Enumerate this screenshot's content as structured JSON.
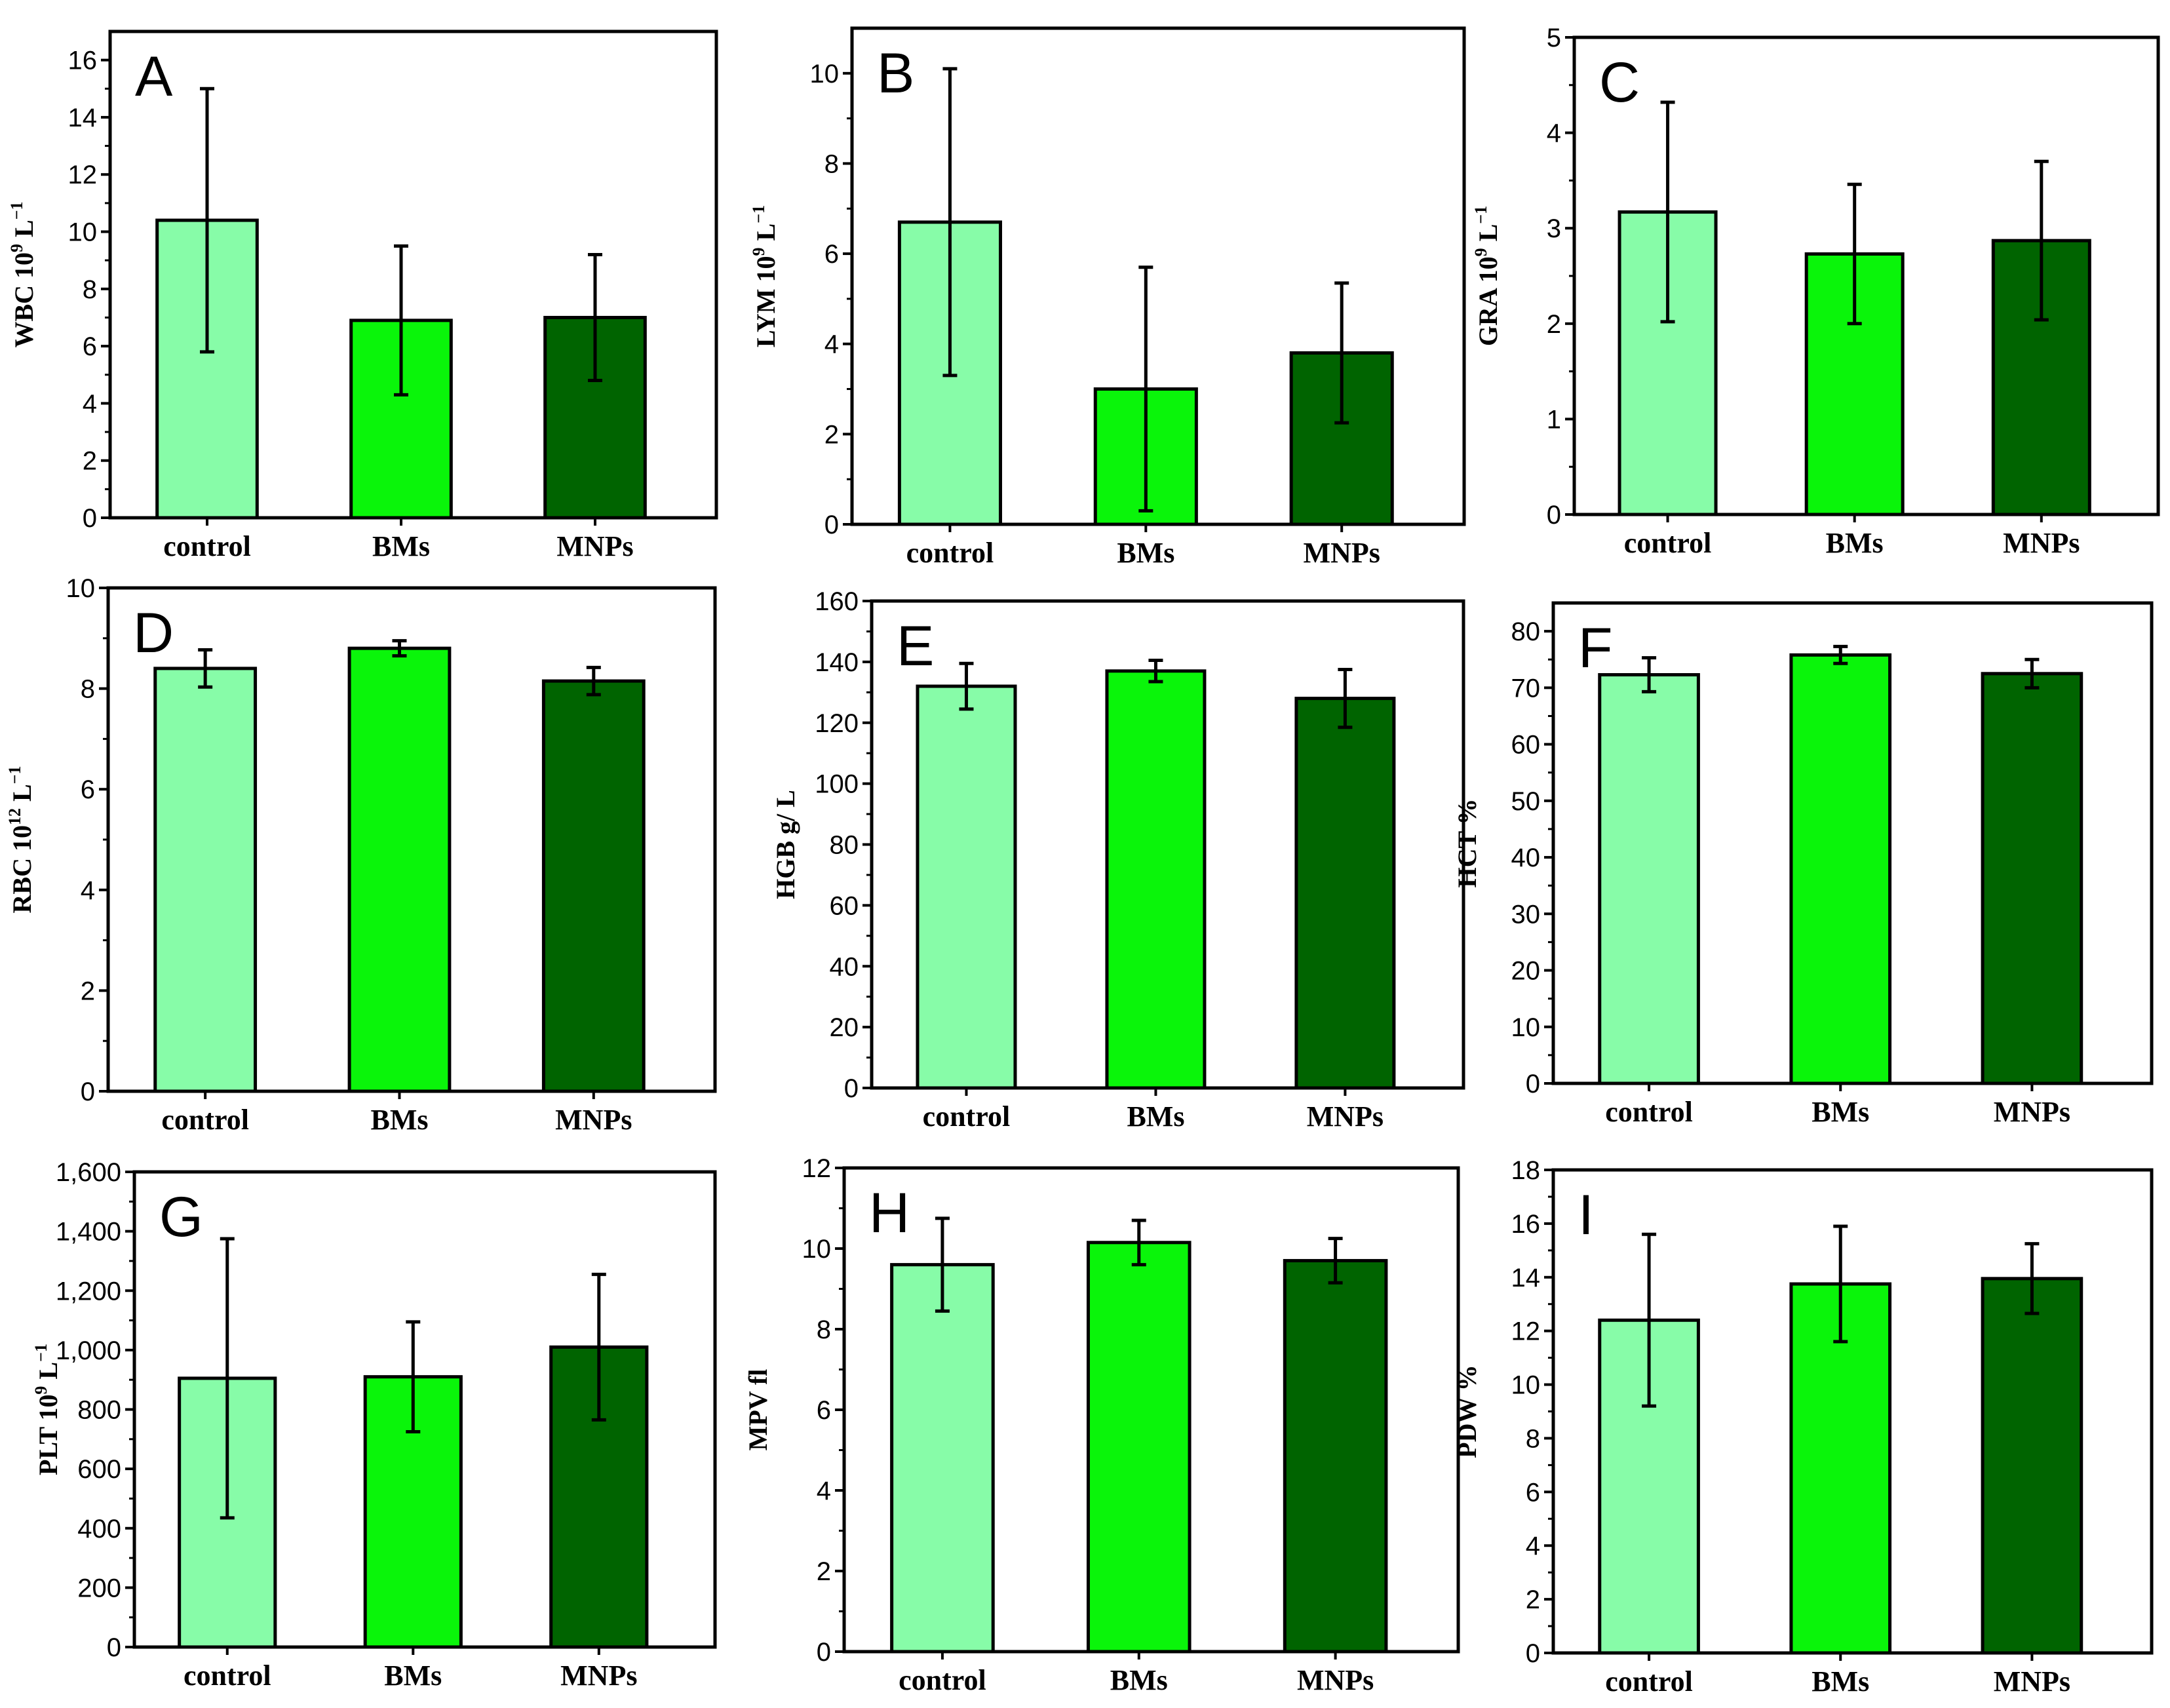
{
  "figure": {
    "colors": [
      "#87FCA8",
      "#0AF50A",
      "#006400"
    ],
    "panel_count": 9
  },
  "chart_data": [
    {
      "type": "bar",
      "panel": "A",
      "title": "",
      "xlabel": "",
      "ylabel": {
        "base": "WBC 10",
        "sup": "9",
        "rest": " L",
        "sup2": "−1"
      },
      "ylim": [
        0,
        17
      ],
      "ticks": [
        0,
        2,
        4,
        6,
        8,
        10,
        12,
        14,
        16
      ],
      "tick_labels": [
        "0",
        "2",
        "4",
        "6",
        "8",
        "10",
        "12",
        "14",
        "16"
      ],
      "categories": [
        "control",
        "BMs",
        "MNPs"
      ],
      "values": [
        10.4,
        6.9,
        7.0
      ],
      "errors": [
        4.6,
        2.6,
        2.2
      ]
    },
    {
      "type": "bar",
      "panel": "B",
      "title": "",
      "xlabel": "",
      "ylabel": {
        "base": "LYM 10",
        "sup": "9",
        "rest": " L",
        "sup2": "−1"
      },
      "ylim": [
        0,
        11
      ],
      "ticks": [
        0,
        2,
        4,
        6,
        8,
        10
      ],
      "tick_labels": [
        "0",
        "2",
        "4",
        "6",
        "8",
        "10"
      ],
      "categories": [
        "control",
        "BMs",
        "MNPs"
      ],
      "values": [
        6.7,
        3.0,
        3.8
      ],
      "errors": [
        3.4,
        2.7,
        1.55
      ]
    },
    {
      "type": "bar",
      "panel": "C",
      "title": "",
      "xlabel": "",
      "ylabel": {
        "base": "GRA 10",
        "sup": "9",
        "rest": " L",
        "sup2": "−1"
      },
      "ylim": [
        0,
        5
      ],
      "ticks": [
        0,
        1,
        2,
        3,
        4,
        5
      ],
      "tick_labels": [
        "0",
        "1",
        "2",
        "3",
        "4",
        "5"
      ],
      "categories": [
        "control",
        "BMs",
        "MNPs"
      ],
      "values": [
        3.17,
        2.73,
        2.87
      ],
      "errors": [
        1.15,
        0.73,
        0.83
      ]
    },
    {
      "type": "bar",
      "panel": "D",
      "title": "",
      "xlabel": "",
      "ylabel": {
        "base": "RBC 10",
        "sup": "12",
        "rest": " L",
        "sup2": "−1"
      },
      "ylim": [
        0,
        10
      ],
      "ticks": [
        0,
        2,
        4,
        6,
        8,
        10
      ],
      "tick_labels": [
        "0",
        "2",
        "4",
        "6",
        "8",
        "10"
      ],
      "categories": [
        "control",
        "BMs",
        "MNPs"
      ],
      "values": [
        8.4,
        8.8,
        8.15
      ],
      "errors": [
        0.37,
        0.15,
        0.27
      ]
    },
    {
      "type": "bar",
      "panel": "E",
      "title": "",
      "xlabel": "",
      "ylabel": {
        "base": "HGB g/ L",
        "sup": "",
        "rest": "",
        "sup2": ""
      },
      "ylim": [
        0,
        160
      ],
      "ticks": [
        0,
        20,
        40,
        60,
        80,
        100,
        120,
        140,
        160
      ],
      "tick_labels": [
        "0",
        "20",
        "40",
        "60",
        "80",
        "100",
        "120",
        "140",
        "160"
      ],
      "categories": [
        "control",
        "BMs",
        "MNPs"
      ],
      "values": [
        132,
        137,
        128
      ],
      "errors": [
        7.5,
        3.5,
        9.5
      ]
    },
    {
      "type": "bar",
      "panel": "F",
      "title": "",
      "xlabel": "",
      "ylabel": {
        "base": "HCT %",
        "sup": "",
        "rest": "",
        "sup2": ""
      },
      "ylim": [
        0,
        85
      ],
      "ticks": [
        0,
        10,
        20,
        30,
        40,
        50,
        60,
        70,
        80
      ],
      "tick_labels": [
        "0",
        "10",
        "20",
        "30",
        "40",
        "50",
        "60",
        "70",
        "80"
      ],
      "categories": [
        "control",
        "BMs",
        "MNPs"
      ],
      "values": [
        72.3,
        75.8,
        72.5
      ],
      "errors": [
        3.0,
        1.5,
        2.5
      ]
    },
    {
      "type": "bar",
      "panel": "G",
      "title": "",
      "xlabel": "",
      "ylabel": {
        "base": "PLT 10",
        "sup": "9",
        "rest": " L",
        "sup2": "−1"
      },
      "ylim": [
        0,
        1600
      ],
      "ticks": [
        0,
        200,
        400,
        600,
        800,
        1000,
        1200,
        1400,
        1600
      ],
      "tick_labels": [
        "0",
        "200",
        "400",
        "600",
        "800",
        "1,000",
        "1,200",
        "1,400",
        "1,600"
      ],
      "categories": [
        "control",
        "BMs",
        "MNPs"
      ],
      "values": [
        905,
        910,
        1010
      ],
      "errors": [
        470,
        185,
        245
      ]
    },
    {
      "type": "bar",
      "panel": "H",
      "title": "",
      "xlabel": "",
      "ylabel": {
        "base": "MPV fl",
        "sup": "",
        "rest": "",
        "sup2": ""
      },
      "ylim": [
        0,
        12
      ],
      "ticks": [
        0,
        2,
        4,
        6,
        8,
        10,
        12
      ],
      "tick_labels": [
        "0",
        "2",
        "4",
        "6",
        "8",
        "10",
        "12"
      ],
      "categories": [
        "control",
        "BMs",
        "MNPs"
      ],
      "values": [
        9.6,
        10.15,
        9.7
      ],
      "errors": [
        1.15,
        0.55,
        0.55
      ]
    },
    {
      "type": "bar",
      "panel": "I",
      "title": "",
      "xlabel": "",
      "ylabel": {
        "base": "PDW %",
        "sup": "",
        "rest": "",
        "sup2": ""
      },
      "ylim": [
        0,
        18
      ],
      "ticks": [
        0,
        2,
        4,
        6,
        8,
        10,
        12,
        14,
        16,
        18
      ],
      "tick_labels": [
        "0",
        "2",
        "4",
        "6",
        "8",
        "10",
        "12",
        "14",
        "16",
        "18"
      ],
      "categories": [
        "control",
        "BMs",
        "MNPs"
      ],
      "values": [
        12.4,
        13.75,
        13.95
      ],
      "errors": [
        3.2,
        2.15,
        1.3
      ]
    }
  ]
}
